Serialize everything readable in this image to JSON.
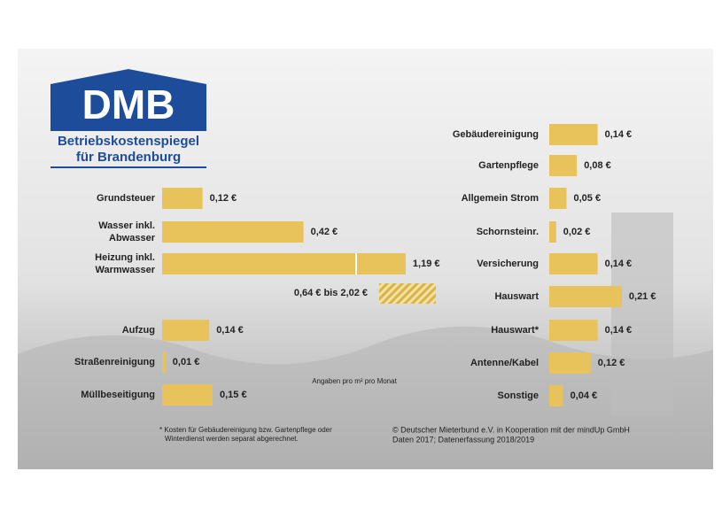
{
  "logo": {
    "title": "DMB",
    "lines": [
      "Betriebskostenspiegel",
      "für Brandenburg"
    ]
  },
  "chart_data": [
    {
      "type": "bar",
      "orientation": "horizontal",
      "color": "#e8c35c",
      "categories": [
        "Grundsteuer",
        [
          "Wasser inkl.",
          "Abwasser"
        ],
        [
          "Heizung inkl.",
          "Warmwasser"
        ],
        "Aufzug",
        "Straßenreinigung",
        "Müllbeseitigung"
      ],
      "values": [
        0.12,
        0.42,
        1.19,
        0.14,
        0.01,
        0.15
      ],
      "value_labels": [
        "0,12 €",
        "0,42 €",
        "1,19 €",
        "0,14 €",
        "0,01 €",
        "0,15 €"
      ],
      "range_label": "0,64 € bis 2,02 €"
    },
    {
      "type": "bar",
      "orientation": "horizontal",
      "color": "#e8c35c",
      "categories": [
        "Gebäudereinigung",
        "Gartenpflege",
        "Allgemein Strom",
        "Schornsteinr.",
        "Versicherung",
        "Hauswart",
        "Hauswart*",
        "Antenne/Kabel",
        "Sonstige"
      ],
      "values": [
        0.14,
        0.08,
        0.05,
        0.02,
        0.14,
        0.21,
        0.14,
        0.12,
        0.04
      ],
      "value_labels": [
        "0,14 €",
        "0,08 €",
        "0,05 €",
        "0,02 €",
        "0,14 €",
        "0,21 €",
        "0,14 €",
        "0,12 €",
        "0,04 €"
      ]
    }
  ],
  "unit_note": "Angaben pro m² pro Monat",
  "footnote": [
    "* Kosten für Gebäudereinigung bzw. Gartenpflege oder",
    "Winterdienst werden separat abgerechnet."
  ],
  "source": [
    "© Deutscher Mieterbund e.V. in Kooperation mit der mindUp GmbH",
    "Daten 2017; Datenerfassung 2018/2019"
  ]
}
